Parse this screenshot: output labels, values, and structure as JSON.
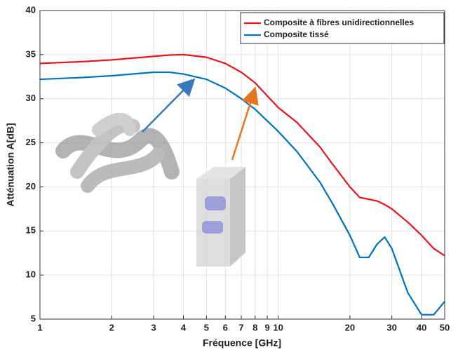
{
  "chart_data": {
    "type": "line",
    "xlabel": "Fréquence [GHz]",
    "ylabel": "Atténuation A[dB]",
    "x": [
      1,
      1.5,
      2,
      3,
      3.5,
      4,
      5,
      6,
      7,
      8,
      10,
      12,
      15,
      17,
      20,
      22,
      24,
      26,
      28,
      30,
      35,
      40,
      45,
      50
    ],
    "series": [
      {
        "name": "Composite à fibres unidirectionnelles",
        "color": "#e8141c",
        "values": [
          34,
          34.2,
          34.4,
          34.8,
          34.95,
          35,
          34.7,
          34,
          33,
          31.8,
          29,
          27.3,
          24.5,
          22.5,
          20,
          18.8,
          18.6,
          18.4,
          18,
          17.5,
          16,
          14.5,
          13,
          12.2
        ]
      },
      {
        "name": "Composite tissé",
        "color": "#0072bd",
        "values": [
          32.2,
          32.4,
          32.6,
          33,
          33,
          32.8,
          32.2,
          31.2,
          30,
          28.8,
          26.3,
          24,
          20.5,
          18,
          14.5,
          12,
          12,
          13.5,
          14.3,
          13,
          8,
          5.5,
          5.5,
          7
        ]
      }
    ],
    "xlim": [
      1,
      50
    ],
    "ylim": [
      5,
      40
    ],
    "xticks": [
      1,
      2,
      3,
      4,
      5,
      6,
      7,
      8,
      9,
      10,
      20,
      30,
      40,
      50
    ],
    "yticks": [
      5,
      10,
      15,
      20,
      25,
      30,
      35,
      40
    ],
    "xscale": "log",
    "grid": true,
    "legend": "upper right"
  }
}
